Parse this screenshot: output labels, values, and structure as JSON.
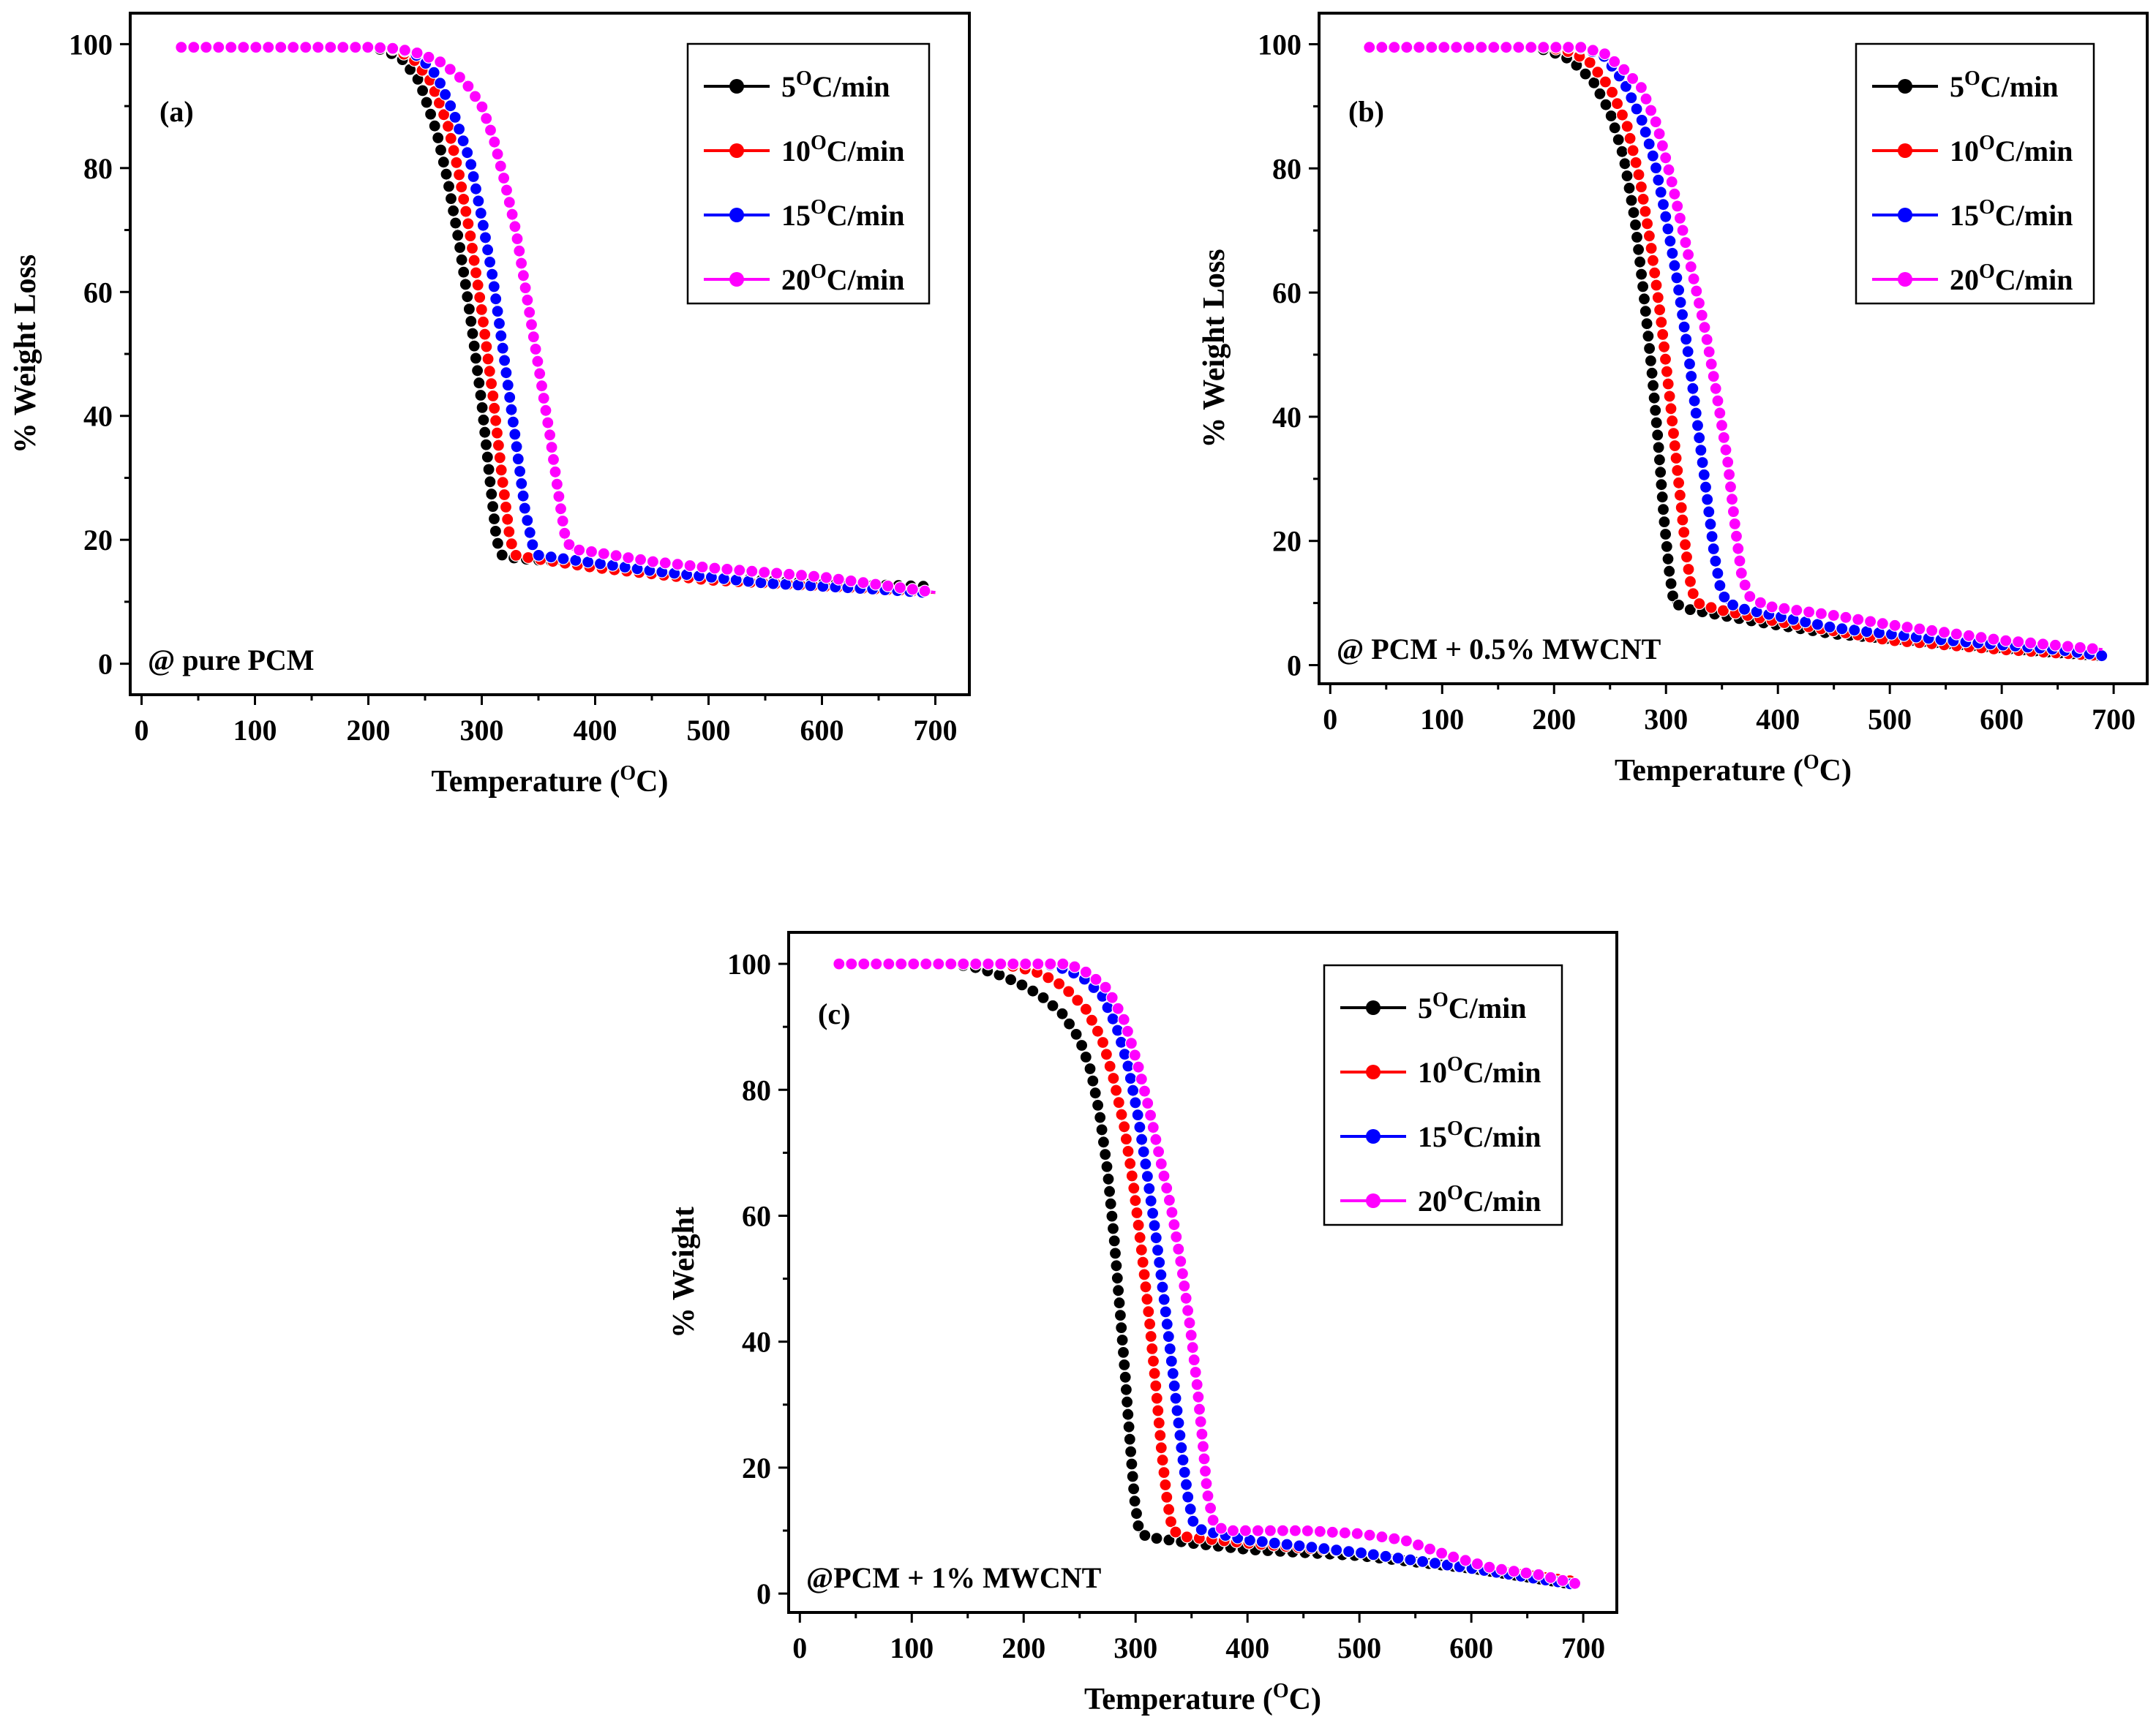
{
  "chart_data": [
    {
      "type": "line",
      "panel_label": "(a)",
      "annotation": "@ pure PCM",
      "xlabel": "Temperature (",
      "xlabel_sup": "O",
      "xlabel_end": "C)",
      "ylabel": "% Weight Loss",
      "xlim": [
        -10,
        730
      ],
      "ylim": [
        -5,
        105
      ],
      "xticks": [
        0,
        100,
        200,
        300,
        400,
        500,
        600,
        700
      ],
      "yticks": [
        0,
        20,
        40,
        60,
        80,
        100
      ],
      "legend_position": "top-right",
      "series": [
        {
          "name": "5",
          "unit": "C/min",
          "color": "#000000",
          "points": [
            [
              35,
              99.5
            ],
            [
              200,
              99.5
            ],
            [
              215,
              99
            ],
            [
              230,
              97.5
            ],
            [
              245,
              94
            ],
            [
              260,
              86
            ],
            [
              270,
              78
            ],
            [
              280,
              68
            ],
            [
              290,
              56
            ],
            [
              300,
              42
            ],
            [
              307,
              30
            ],
            [
              313,
              20
            ],
            [
              318,
              17.5
            ],
            [
              330,
              17
            ],
            [
              400,
              16
            ],
            [
              500,
              14
            ],
            [
              600,
              13
            ],
            [
              690,
              12.5
            ]
          ]
        },
        {
          "name": "10",
          "unit": "C/min",
          "color": "#ff0000",
          "points": [
            [
              35,
              99.5
            ],
            [
              210,
              99.5
            ],
            [
              225,
              99
            ],
            [
              240,
              97.5
            ],
            [
              255,
              94
            ],
            [
              270,
              87
            ],
            [
              280,
              79
            ],
            [
              290,
              69
            ],
            [
              300,
              57
            ],
            [
              310,
              43
            ],
            [
              318,
              30
            ],
            [
              325,
              20
            ],
            [
              330,
              17.5
            ],
            [
              345,
              17
            ],
            [
              400,
              15.5
            ],
            [
              500,
              13.5
            ],
            [
              600,
              12.5
            ],
            [
              700,
              11.5
            ]
          ]
        },
        {
          "name": "15",
          "unit": "C/min",
          "color": "#0000ff",
          "points": [
            [
              35,
              99.5
            ],
            [
              215,
              99.5
            ],
            [
              230,
              99
            ],
            [
              245,
              98
            ],
            [
              260,
              95
            ],
            [
              275,
              89
            ],
            [
              290,
              81
            ],
            [
              300,
              72
            ],
            [
              310,
              62
            ],
            [
              320,
              49
            ],
            [
              330,
              36
            ],
            [
              338,
              25
            ],
            [
              345,
              19
            ],
            [
              350,
              17.5
            ],
            [
              370,
              17
            ],
            [
              450,
              15
            ],
            [
              550,
              13
            ],
            [
              650,
              12
            ],
            [
              690,
              11.5
            ]
          ]
        },
        {
          "name": "20",
          "unit": "C/min",
          "color": "#ff00ff",
          "points": [
            [
              35,
              99.5
            ],
            [
              200,
              99.5
            ],
            [
              225,
              99.3
            ],
            [
              245,
              98.5
            ],
            [
              265,
              97
            ],
            [
              285,
              94
            ],
            [
              300,
              90
            ],
            [
              310,
              85
            ],
            [
              320,
              78
            ],
            [
              330,
              70
            ],
            [
              340,
              59
            ],
            [
              350,
              48
            ],
            [
              360,
              37
            ],
            [
              368,
              27
            ],
            [
              374,
              20
            ],
            [
              380,
              18.5
            ],
            [
              400,
              18
            ],
            [
              450,
              16.5
            ],
            [
              500,
              15.5
            ],
            [
              600,
              14
            ],
            [
              700,
              11.5
            ]
          ]
        }
      ]
    },
    {
      "type": "line",
      "panel_label": "(b)",
      "annotation": "@ PCM + 0.5% MWCNT",
      "xlabel": "Temperature (",
      "xlabel_sup": "O",
      "xlabel_end": "C)",
      "ylabel": "% Weight Loss",
      "xlim": [
        -10,
        730
      ],
      "ylim": [
        -3,
        105
      ],
      "xticks": [
        0,
        100,
        200,
        300,
        400,
        500,
        600,
        700
      ],
      "yticks": [
        0,
        20,
        40,
        60,
        80,
        100
      ],
      "legend_position": "top-right",
      "series": [
        {
          "name": "5",
          "unit": "C/min",
          "color": "#000000",
          "points": [
            [
              35,
              99.5
            ],
            [
              175,
              99.5
            ],
            [
              195,
              99
            ],
            [
              215,
              97.5
            ],
            [
              235,
              94
            ],
            [
              250,
              89
            ],
            [
              262,
              82
            ],
            [
              272,
              72
            ],
            [
              280,
              60
            ],
            [
              287,
              48
            ],
            [
              293,
              36
            ],
            [
              298,
              24
            ],
            [
              303,
              15
            ],
            [
              307,
              10
            ],
            [
              320,
              9
            ],
            [
              380,
              7
            ],
            [
              450,
              5
            ],
            [
              550,
              3.5
            ],
            [
              650,
              2
            ],
            [
              690,
              1.5
            ]
          ]
        },
        {
          "name": "10",
          "unit": "C/min",
          "color": "#ff0000",
          "points": [
            [
              35,
              99.5
            ],
            [
              190,
              99.5
            ],
            [
              210,
              99
            ],
            [
              230,
              97.5
            ],
            [
              250,
              93
            ],
            [
              265,
              87
            ],
            [
              277,
              78
            ],
            [
              287,
              67
            ],
            [
              296,
              55
            ],
            [
              304,
              42
            ],
            [
              311,
              30
            ],
            [
              318,
              18
            ],
            [
              323,
              12
            ],
            [
              328,
              10
            ],
            [
              345,
              9
            ],
            [
              400,
              7
            ],
            [
              500,
              4
            ],
            [
              600,
              2.5
            ],
            [
              690,
              1.5
            ]
          ]
        },
        {
          "name": "15",
          "unit": "C/min",
          "color": "#0000ff",
          "points": [
            [
              35,
              99.5
            ],
            [
              210,
              99.5
            ],
            [
              228,
              99.3
            ],
            [
              245,
              98
            ],
            [
              262,
              94
            ],
            [
              278,
              88
            ],
            [
              290,
              81
            ],
            [
              300,
              72
            ],
            [
              310,
              62
            ],
            [
              320,
              50
            ],
            [
              328,
              39
            ],
            [
              336,
              28
            ],
            [
              343,
              18
            ],
            [
              349,
              12
            ],
            [
              355,
              10
            ],
            [
              370,
              9
            ],
            [
              450,
              6
            ],
            [
              550,
              4
            ],
            [
              650,
              2.5
            ],
            [
              690,
              1.5
            ]
          ]
        },
        {
          "name": "20",
          "unit": "C/min",
          "color": "#ff00ff",
          "points": [
            [
              35,
              99.5
            ],
            [
              225,
              99.5
            ],
            [
              245,
              98.5
            ],
            [
              262,
              96
            ],
            [
              278,
              93
            ],
            [
              292,
              87
            ],
            [
              305,
              78
            ],
            [
              315,
              70
            ],
            [
              325,
              62
            ],
            [
              335,
              54
            ],
            [
              345,
              44
            ],
            [
              355,
              33
            ],
            [
              362,
              22
            ],
            [
              368,
              14
            ],
            [
              375,
              11
            ],
            [
              390,
              9.5
            ],
            [
              450,
              8
            ],
            [
              500,
              6.5
            ],
            [
              600,
              4
            ],
            [
              690,
              2.5
            ]
          ]
        }
      ]
    },
    {
      "type": "line",
      "panel_label": "(c)",
      "annotation": "@PCM + 1% MWCNT",
      "xlabel": "Temperature (",
      "xlabel_sup": "O",
      "xlabel_end": "C)",
      "ylabel": "% Weight",
      "xlim": [
        -10,
        730
      ],
      "ylim": [
        -3,
        105
      ],
      "xticks": [
        0,
        100,
        200,
        300,
        400,
        500,
        600,
        700
      ],
      "yticks": [
        0,
        20,
        40,
        60,
        80,
        100
      ],
      "legend_position": "top-right",
      "series": [
        {
          "name": "5",
          "unit": "C/min",
          "color": "#000000",
          "points": [
            [
              35,
              100
            ],
            [
              135,
              100
            ],
            [
              155,
              99.5
            ],
            [
              175,
              98.5
            ],
            [
              195,
              97
            ],
            [
              215,
              95
            ],
            [
              235,
              92
            ],
            [
              250,
              88
            ],
            [
              260,
              83
            ],
            [
              268,
              76
            ],
            [
              275,
              67
            ],
            [
              281,
              56
            ],
            [
              286,
              45
            ],
            [
              291,
              34
            ],
            [
              295,
              24
            ],
            [
              299,
              15
            ],
            [
              303,
              10
            ],
            [
              310,
              9
            ],
            [
              350,
              8
            ],
            [
              400,
              7
            ],
            [
              500,
              6
            ],
            [
              600,
              4
            ],
            [
              690,
              1.5
            ]
          ]
        },
        {
          "name": "10",
          "unit": "C/min",
          "color": "#ff0000",
          "points": [
            [
              35,
              100
            ],
            [
              175,
              100
            ],
            [
              195,
              99.5
            ],
            [
              215,
              98.5
            ],
            [
              235,
              96.5
            ],
            [
              255,
              93
            ],
            [
              270,
              88
            ],
            [
              280,
              82
            ],
            [
              290,
              74
            ],
            [
              298,
              65
            ],
            [
              305,
              55
            ],
            [
              312,
              44
            ],
            [
              318,
              33
            ],
            [
              323,
              23
            ],
            [
              328,
              15
            ],
            [
              333,
              10
            ],
            [
              345,
              9
            ],
            [
              400,
              8
            ],
            [
              500,
              6.5
            ],
            [
              600,
              4
            ],
            [
              690,
              2
            ]
          ]
        },
        {
          "name": "15",
          "unit": "C/min",
          "color": "#0000ff",
          "points": [
            [
              35,
              100
            ],
            [
              220,
              100
            ],
            [
              240,
              99
            ],
            [
              255,
              97.5
            ],
            [
              270,
              95
            ],
            [
              283,
              90
            ],
            [
              293,
              84
            ],
            [
              302,
              76
            ],
            [
              310,
              67
            ],
            [
              318,
              57
            ],
            [
              326,
              46
            ],
            [
              334,
              34
            ],
            [
              341,
              23
            ],
            [
              347,
              15
            ],
            [
              352,
              11
            ],
            [
              360,
              10
            ],
            [
              400,
              8.5
            ],
            [
              500,
              6.5
            ],
            [
              600,
              4
            ],
            [
              690,
              1.5
            ]
          ]
        },
        {
          "name": "20",
          "unit": "C/min",
          "color": "#ff00ff",
          "points": [
            [
              35,
              100
            ],
            [
              240,
              100
            ],
            [
              258,
              98.5
            ],
            [
              275,
              96
            ],
            [
              290,
              91
            ],
            [
              302,
              84
            ],
            [
              312,
              77
            ],
            [
              322,
              69
            ],
            [
              332,
              61
            ],
            [
              341,
              52
            ],
            [
              349,
              42
            ],
            [
              355,
              33
            ],
            [
              360,
              24
            ],
            [
              364,
              16
            ],
            [
              370,
              11
            ],
            [
              380,
              10
            ],
            [
              450,
              10
            ],
            [
              500,
              9.5
            ],
            [
              540,
              8.5
            ],
            [
              580,
              6
            ],
            [
              620,
              4
            ],
            [
              660,
              3
            ],
            [
              695,
              1.5
            ]
          ]
        }
      ]
    }
  ]
}
